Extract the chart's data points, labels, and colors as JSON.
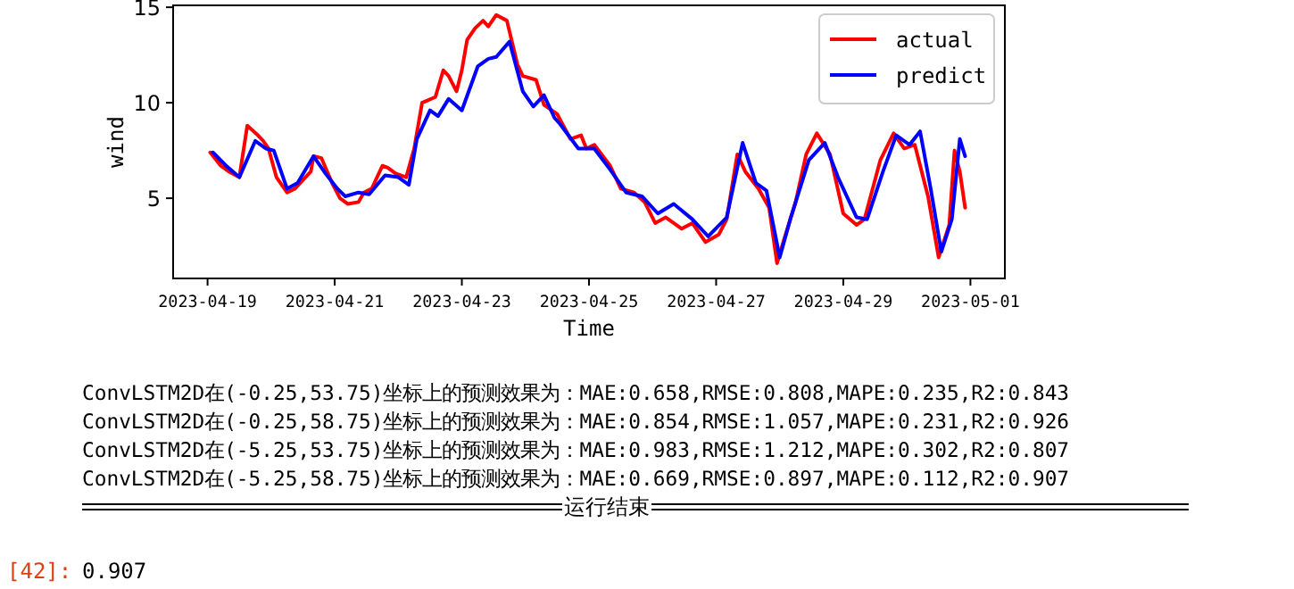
{
  "chart_data": {
    "type": "line",
    "xlabel": "Time",
    "ylabel": "wind",
    "legend": "top right",
    "grid": false,
    "marker": "none",
    "line_style": "solid",
    "xlim": [
      "2023-04-18T11:00",
      "2023-05-01T13:00"
    ],
    "ylim": [
      0.8,
      15.1
    ],
    "xticks": [
      "2023-04-19",
      "2023-04-21",
      "2023-04-23",
      "2023-04-25",
      "2023-04-27",
      "2023-04-29",
      "2023-05-01"
    ],
    "yticks": [
      5,
      10,
      15
    ],
    "series": [
      {
        "name": "actual",
        "color": "#ff0000",
        "x": [
          "2023-04-19T01:00",
          "2023-04-19T05:00",
          "2023-04-19T08:00",
          "2023-04-19T12:00",
          "2023-04-19T15:00",
          "2023-04-19T19:00",
          "2023-04-19T21:00",
          "2023-04-19T23:00",
          "2023-04-20T02:00",
          "2023-04-20T06:00",
          "2023-04-20T09:00",
          "2023-04-20T15:00",
          "2023-04-20T16:00",
          "2023-04-20T19:00",
          "2023-04-20T23:00",
          "2023-04-21T02:00",
          "2023-04-21T05:00",
          "2023-04-21T09:00",
          "2023-04-21T11:00",
          "2023-04-21T14:00",
          "2023-04-21T18:00",
          "2023-04-21T20:00",
          "2023-04-21T23:00",
          "2023-04-22T03:00",
          "2023-04-22T06:00",
          "2023-04-22T09:00",
          "2023-04-22T14:00",
          "2023-04-22T17:00",
          "2023-04-22T19:00",
          "2023-04-22T22:00",
          "2023-04-23T00:00",
          "2023-04-23T02:00",
          "2023-04-23T05:00",
          "2023-04-23T08:00",
          "2023-04-23T10:00",
          "2023-04-23T13:00",
          "2023-04-23T17:00",
          "2023-04-23T21:00",
          "2023-04-23T23:00",
          "2023-04-24T04:00",
          "2023-04-24T07:00",
          "2023-04-24T12:00",
          "2023-04-24T17:00",
          "2023-04-24T21:00",
          "2023-04-24T23:00",
          "2023-04-25T02:00",
          "2023-04-25T08:00",
          "2023-04-25T12:00",
          "2023-04-25T17:00",
          "2023-04-25T21:00",
          "2023-04-26T01:00",
          "2023-04-26T05:00",
          "2023-04-26T11:00",
          "2023-04-26T15:00",
          "2023-04-26T20:00",
          "2023-04-27T01:00",
          "2023-04-27T04:00",
          "2023-04-27T08:00",
          "2023-04-27T11:00",
          "2023-04-27T16:00",
          "2023-04-27T20:00",
          "2023-04-27T23:00",
          "2023-04-28T02:00",
          "2023-04-28T06:00",
          "2023-04-28T10:00",
          "2023-04-28T14:00",
          "2023-04-28T19:00",
          "2023-04-29T00:00",
          "2023-04-29T05:00",
          "2023-04-29T08:00",
          "2023-04-29T14:00",
          "2023-04-29T19:00",
          "2023-04-29T23:00",
          "2023-04-30T03:00",
          "2023-04-30T08:00",
          "2023-04-30T12:00",
          "2023-04-30T16:00",
          "2023-04-30T18:00",
          "2023-04-30T20:00",
          "2023-04-30T22:00"
        ],
        "values": [
          7.4,
          6.7,
          6.4,
          6.1,
          8.8,
          8.3,
          8.0,
          7.6,
          6.1,
          5.3,
          5.5,
          6.4,
          7.2,
          7.1,
          5.8,
          5.0,
          4.7,
          4.8,
          5.3,
          5.5,
          6.7,
          6.6,
          6.3,
          6.1,
          7.6,
          10.0,
          10.3,
          11.7,
          11.4,
          10.6,
          11.7,
          13.3,
          13.9,
          14.3,
          14.0,
          14.6,
          14.3,
          12.0,
          11.4,
          11.2,
          9.9,
          9.4,
          8.1,
          8.3,
          7.6,
          7.8,
          6.7,
          5.5,
          5.3,
          4.8,
          3.7,
          4.0,
          3.4,
          3.7,
          2.7,
          3.1,
          3.9,
          7.3,
          6.4,
          5.5,
          4.5,
          1.6,
          3.0,
          4.8,
          7.3,
          8.4,
          7.3,
          4.2,
          3.6,
          3.9,
          7.0,
          8.4,
          7.6,
          7.8,
          5.1,
          1.9,
          3.6,
          7.5,
          6.4,
          4.5
        ]
      },
      {
        "name": "predict",
        "color": "#0000ff",
        "x": [
          "2023-04-19T02:00",
          "2023-04-19T07:00",
          "2023-04-19T12:00",
          "2023-04-19T18:00",
          "2023-04-19T22:00",
          "2023-04-20T01:00",
          "2023-04-20T06:00",
          "2023-04-20T10:00",
          "2023-04-20T16:00",
          "2023-04-20T20:00",
          "2023-04-21T01:00",
          "2023-04-21T04:00",
          "2023-04-21T09:00",
          "2023-04-21T13:00",
          "2023-04-21T19:00",
          "2023-04-22T00:00",
          "2023-04-22T04:00",
          "2023-04-22T07:00",
          "2023-04-22T12:00",
          "2023-04-22T15:00",
          "2023-04-22T19:00",
          "2023-04-23T00:00",
          "2023-04-23T06:00",
          "2023-04-23T10:00",
          "2023-04-23T13:00",
          "2023-04-23T18:00",
          "2023-04-23T23:00",
          "2023-04-24T03:00",
          "2023-04-24T07:00",
          "2023-04-24T11:00",
          "2023-04-24T13:00",
          "2023-04-24T20:00",
          "2023-04-25T02:00",
          "2023-04-25T08:00",
          "2023-04-25T14:00",
          "2023-04-25T20:00",
          "2023-04-26T02:00",
          "2023-04-26T08:00",
          "2023-04-26T15:00",
          "2023-04-26T21:00",
          "2023-04-27T04:00",
          "2023-04-27T10:00",
          "2023-04-27T15:00",
          "2023-04-27T19:00",
          "2023-04-28T00:00",
          "2023-04-28T04:00",
          "2023-04-28T11:00",
          "2023-04-28T17:00",
          "2023-04-28T22:00",
          "2023-04-29T05:00",
          "2023-04-29T09:00",
          "2023-04-29T15:00",
          "2023-04-29T20:00",
          "2023-04-30T01:00",
          "2023-04-30T05:00",
          "2023-04-30T09:00",
          "2023-04-30T13:00",
          "2023-04-30T17:00",
          "2023-04-30T20:00",
          "2023-04-30T22:00"
        ],
        "values": [
          7.4,
          6.7,
          6.1,
          8.0,
          7.6,
          7.5,
          5.5,
          5.8,
          7.2,
          6.4,
          5.5,
          5.1,
          5.3,
          5.2,
          6.2,
          6.1,
          5.7,
          8.1,
          9.6,
          9.3,
          10.2,
          9.6,
          11.9,
          12.3,
          12.4,
          13.2,
          10.6,
          9.8,
          10.4,
          9.2,
          8.9,
          7.6,
          7.6,
          6.5,
          5.3,
          5.1,
          4.2,
          4.7,
          3.9,
          3.0,
          4.0,
          7.9,
          5.8,
          5.4,
          1.9,
          3.9,
          7.0,
          7.9,
          6.1,
          4.0,
          3.9,
          6.4,
          8.3,
          7.8,
          8.5,
          5.5,
          2.2,
          3.9,
          8.1,
          7.2
        ]
      }
    ],
    "annotations": [
      "ConvLSTM2D在(-0.25,53.75)坐标上的预测效果为：MAE:0.658,RMSE:0.808,MAPE:0.235,R2:0.843",
      "ConvLSTM2D在(-0.25,58.75)坐标上的预测效果为：MAE:0.854,RMSE:1.057,MAPE:0.231,R2:0.926",
      "ConvLSTM2D在(-5.25,53.75)坐标上的预测效果为：MAE:0.983,RMSE:1.212,MAPE:0.302,R2:0.807",
      "ConvLSTM2D在(-5.25,58.75)坐标上的预测效果为：MAE:0.669,RMSE:0.897,MAPE:0.112,R2:0.907",
      "运行结束",
      "[42]:",
      "0.907"
    ]
  }
}
